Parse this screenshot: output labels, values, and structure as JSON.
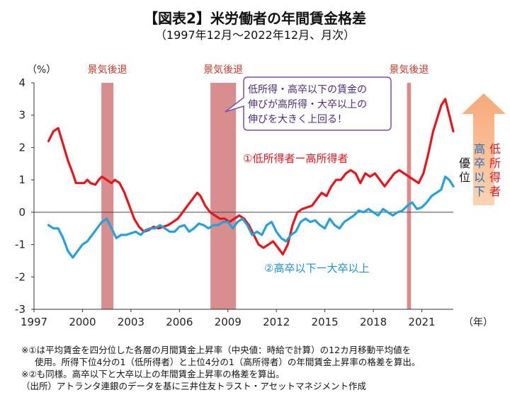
{
  "title": "【図表2】米労働者の年間賃金格差",
  "subtitle": "（1997年12月～2022年12月、月次）",
  "chart_data": {
    "type": "line",
    "y_unit_label": "（%）",
    "x_unit_label": "（年）",
    "ylim": [
      -3,
      4
    ],
    "yticks": [
      -3,
      -2,
      -1,
      0,
      1,
      2,
      3,
      4
    ],
    "xlim": [
      1997,
      2022.95
    ],
    "xticks": [
      1997,
      2000,
      2003,
      2006,
      2009,
      2012,
      2015,
      2018,
      2021
    ],
    "grid": false,
    "recessions": [
      {
        "label": "景気後退",
        "start": 2001.17,
        "end": 2001.92
      },
      {
        "label": "景気後退",
        "start": 2007.92,
        "end": 2009.5
      },
      {
        "label": "景気後退",
        "start": 2020.08,
        "end": 2020.33
      }
    ],
    "series": [
      {
        "name": "①低所得者ー高所得者",
        "color": "#e8141b",
        "points": [
          [
            1997.9,
            2.2
          ],
          [
            1998.2,
            2.5
          ],
          [
            1998.5,
            2.6
          ],
          [
            1998.8,
            2.1
          ],
          [
            1999.1,
            1.6
          ],
          [
            1999.4,
            1.2
          ],
          [
            1999.6,
            0.9
          ],
          [
            1999.9,
            0.9
          ],
          [
            2000.1,
            0.9
          ],
          [
            2000.3,
            1.0
          ],
          [
            2000.5,
            0.9
          ],
          [
            2000.8,
            0.85
          ],
          [
            2001.0,
            1.0
          ],
          [
            2001.2,
            1.1
          ],
          [
            2001.5,
            1.0
          ],
          [
            2001.8,
            0.9
          ],
          [
            2002.0,
            1.0
          ],
          [
            2002.3,
            0.9
          ],
          [
            2002.6,
            0.6
          ],
          [
            2002.9,
            0.2
          ],
          [
            2003.2,
            -0.2
          ],
          [
            2003.5,
            -0.45
          ],
          [
            2003.8,
            -0.6
          ],
          [
            2004.1,
            -0.55
          ],
          [
            2004.4,
            -0.45
          ],
          [
            2004.7,
            -0.5
          ],
          [
            2005.0,
            -0.45
          ],
          [
            2005.3,
            -0.4
          ],
          [
            2005.6,
            -0.3
          ],
          [
            2005.9,
            -0.2
          ],
          [
            2006.2,
            0.0
          ],
          [
            2006.5,
            0.2
          ],
          [
            2006.8,
            0.4
          ],
          [
            2007.1,
            0.6
          ],
          [
            2007.3,
            0.5
          ],
          [
            2007.6,
            0.2
          ],
          [
            2007.9,
            0.0
          ],
          [
            2008.2,
            -0.1
          ],
          [
            2008.5,
            -0.2
          ],
          [
            2008.8,
            -0.2
          ],
          [
            2009.1,
            -0.3
          ],
          [
            2009.4,
            -0.2
          ],
          [
            2009.7,
            -0.1
          ],
          [
            2010.0,
            -0.2
          ],
          [
            2010.3,
            -0.4
          ],
          [
            2010.6,
            -0.7
          ],
          [
            2010.9,
            -1.0
          ],
          [
            2011.2,
            -1.1
          ],
          [
            2011.5,
            -1.0
          ],
          [
            2011.8,
            -0.9
          ],
          [
            2012.1,
            -1.1
          ],
          [
            2012.4,
            -1.3
          ],
          [
            2012.7,
            -1.0
          ],
          [
            2013.0,
            -0.4
          ],
          [
            2013.3,
            0.0
          ],
          [
            2013.6,
            0.1
          ],
          [
            2013.9,
            0.15
          ],
          [
            2014.2,
            0.2
          ],
          [
            2014.5,
            0.4
          ],
          [
            2014.8,
            0.6
          ],
          [
            2015.1,
            0.5
          ],
          [
            2015.4,
            0.8
          ],
          [
            2015.7,
            1.0
          ],
          [
            2016.0,
            1.0
          ],
          [
            2016.3,
            1.2
          ],
          [
            2016.6,
            1.3
          ],
          [
            2016.9,
            1.2
          ],
          [
            2017.2,
            0.9
          ],
          [
            2017.5,
            1.2
          ],
          [
            2017.8,
            1.1
          ],
          [
            2018.1,
            1.2
          ],
          [
            2018.4,
            1.0
          ],
          [
            2018.7,
            0.8
          ],
          [
            2019.0,
            1.0
          ],
          [
            2019.3,
            1.2
          ],
          [
            2019.6,
            1.3
          ],
          [
            2019.9,
            1.2
          ],
          [
            2020.2,
            1.1
          ],
          [
            2020.5,
            1.0
          ],
          [
            2020.8,
            0.9
          ],
          [
            2021.1,
            1.2
          ],
          [
            2021.4,
            1.8
          ],
          [
            2021.7,
            2.5
          ],
          [
            2021.95,
            2.9
          ],
          [
            2022.2,
            3.3
          ],
          [
            2022.45,
            3.5
          ],
          [
            2022.7,
            3.0
          ],
          [
            2022.95,
            2.5
          ]
        ]
      },
      {
        "name": "②高卒以下ー大卒以上",
        "color": "#26a0da",
        "points": [
          [
            1997.9,
            -0.4
          ],
          [
            1998.2,
            -0.5
          ],
          [
            1998.5,
            -0.5
          ],
          [
            1998.8,
            -0.8
          ],
          [
            1999.1,
            -1.2
          ],
          [
            1999.4,
            -1.4
          ],
          [
            1999.7,
            -1.2
          ],
          [
            2000.0,
            -1.0
          ],
          [
            2000.3,
            -0.9
          ],
          [
            2000.6,
            -0.7
          ],
          [
            2000.9,
            -0.5
          ],
          [
            2001.2,
            -0.3
          ],
          [
            2001.5,
            -0.2
          ],
          [
            2001.8,
            -0.5
          ],
          [
            2002.1,
            -0.8
          ],
          [
            2002.4,
            -0.7
          ],
          [
            2002.7,
            -0.7
          ],
          [
            2003.0,
            -0.65
          ],
          [
            2003.3,
            -0.6
          ],
          [
            2003.6,
            -0.7
          ],
          [
            2003.9,
            -0.55
          ],
          [
            2004.2,
            -0.5
          ],
          [
            2004.5,
            -0.5
          ],
          [
            2004.8,
            -0.4
          ],
          [
            2005.1,
            -0.5
          ],
          [
            2005.4,
            -0.6
          ],
          [
            2005.7,
            -0.6
          ],
          [
            2006.0,
            -0.45
          ],
          [
            2006.3,
            -0.4
          ],
          [
            2006.6,
            -0.6
          ],
          [
            2006.9,
            -0.5
          ],
          [
            2007.2,
            -0.35
          ],
          [
            2007.5,
            -0.4
          ],
          [
            2007.8,
            -0.5
          ],
          [
            2008.1,
            -0.4
          ],
          [
            2008.4,
            -0.4
          ],
          [
            2008.7,
            -0.3
          ],
          [
            2009.0,
            -0.3
          ],
          [
            2009.3,
            -0.5
          ],
          [
            2009.6,
            -0.3
          ],
          [
            2009.9,
            -0.2
          ],
          [
            2010.2,
            -0.4
          ],
          [
            2010.5,
            -0.7
          ],
          [
            2010.8,
            -0.6
          ],
          [
            2011.1,
            -0.7
          ],
          [
            2011.4,
            -0.4
          ],
          [
            2011.7,
            -0.3
          ],
          [
            2012.0,
            -0.6
          ],
          [
            2012.3,
            -0.8
          ],
          [
            2012.6,
            -0.9
          ],
          [
            2012.9,
            -0.7
          ],
          [
            2013.2,
            -0.6
          ],
          [
            2013.5,
            -0.3
          ],
          [
            2013.8,
            -0.2
          ],
          [
            2014.1,
            -0.3
          ],
          [
            2014.4,
            -0.25
          ],
          [
            2014.7,
            -0.4
          ],
          [
            2015.0,
            -0.5
          ],
          [
            2015.3,
            -0.2
          ],
          [
            2015.6,
            -0.4
          ],
          [
            2015.9,
            -0.5
          ],
          [
            2016.2,
            -0.3
          ],
          [
            2016.5,
            -0.2
          ],
          [
            2016.8,
            -0.1
          ],
          [
            2017.1,
            0.05
          ],
          [
            2017.4,
            0.0
          ],
          [
            2017.7,
            0.1
          ],
          [
            2018.0,
            0.0
          ],
          [
            2018.3,
            -0.1
          ],
          [
            2018.6,
            0.1
          ],
          [
            2018.9,
            0.0
          ],
          [
            2019.2,
            -0.1
          ],
          [
            2019.5,
            0.0
          ],
          [
            2019.8,
            0.05
          ],
          [
            2020.1,
            0.2
          ],
          [
            2020.4,
            0.3
          ],
          [
            2020.7,
            0.1
          ],
          [
            2021.0,
            0.15
          ],
          [
            2021.3,
            0.3
          ],
          [
            2021.6,
            0.5
          ],
          [
            2021.9,
            0.6
          ],
          [
            2022.2,
            0.7
          ],
          [
            2022.45,
            1.1
          ],
          [
            2022.7,
            1.0
          ],
          [
            2022.95,
            0.8
          ]
        ]
      }
    ],
    "annotations": {
      "callout_lines": [
        "低所得・高卒以下の賃金の",
        "伸びが高所得・大卒以上の",
        "伸びを大きく上回る！"
      ],
      "arrow_right_col_lines": [
        "低",
        "所",
        "得",
        "者"
      ],
      "arrow_mid_col_lines": [
        "高",
        "卒",
        "以",
        "下"
      ],
      "arrow_left_col_lines": [
        "優",
        "位"
      ]
    }
  },
  "footnotes": [
    "※①は平均賃金を四分位した各層の月間賃金上昇率（中央値：時給で計算）の12カ月移動平均値を",
    "使用。所得下位4分の1（低所得者）と上位4分の1（高所得者）の年間賃金上昇率の格差を算出。",
    "※②も同様。高卒以下と大卒以上の年間賃金上昇率の格差を算出。",
    "（出所）アトランタ連銀のデータを基に三井住友トラスト・アセットマネジメント作成"
  ]
}
